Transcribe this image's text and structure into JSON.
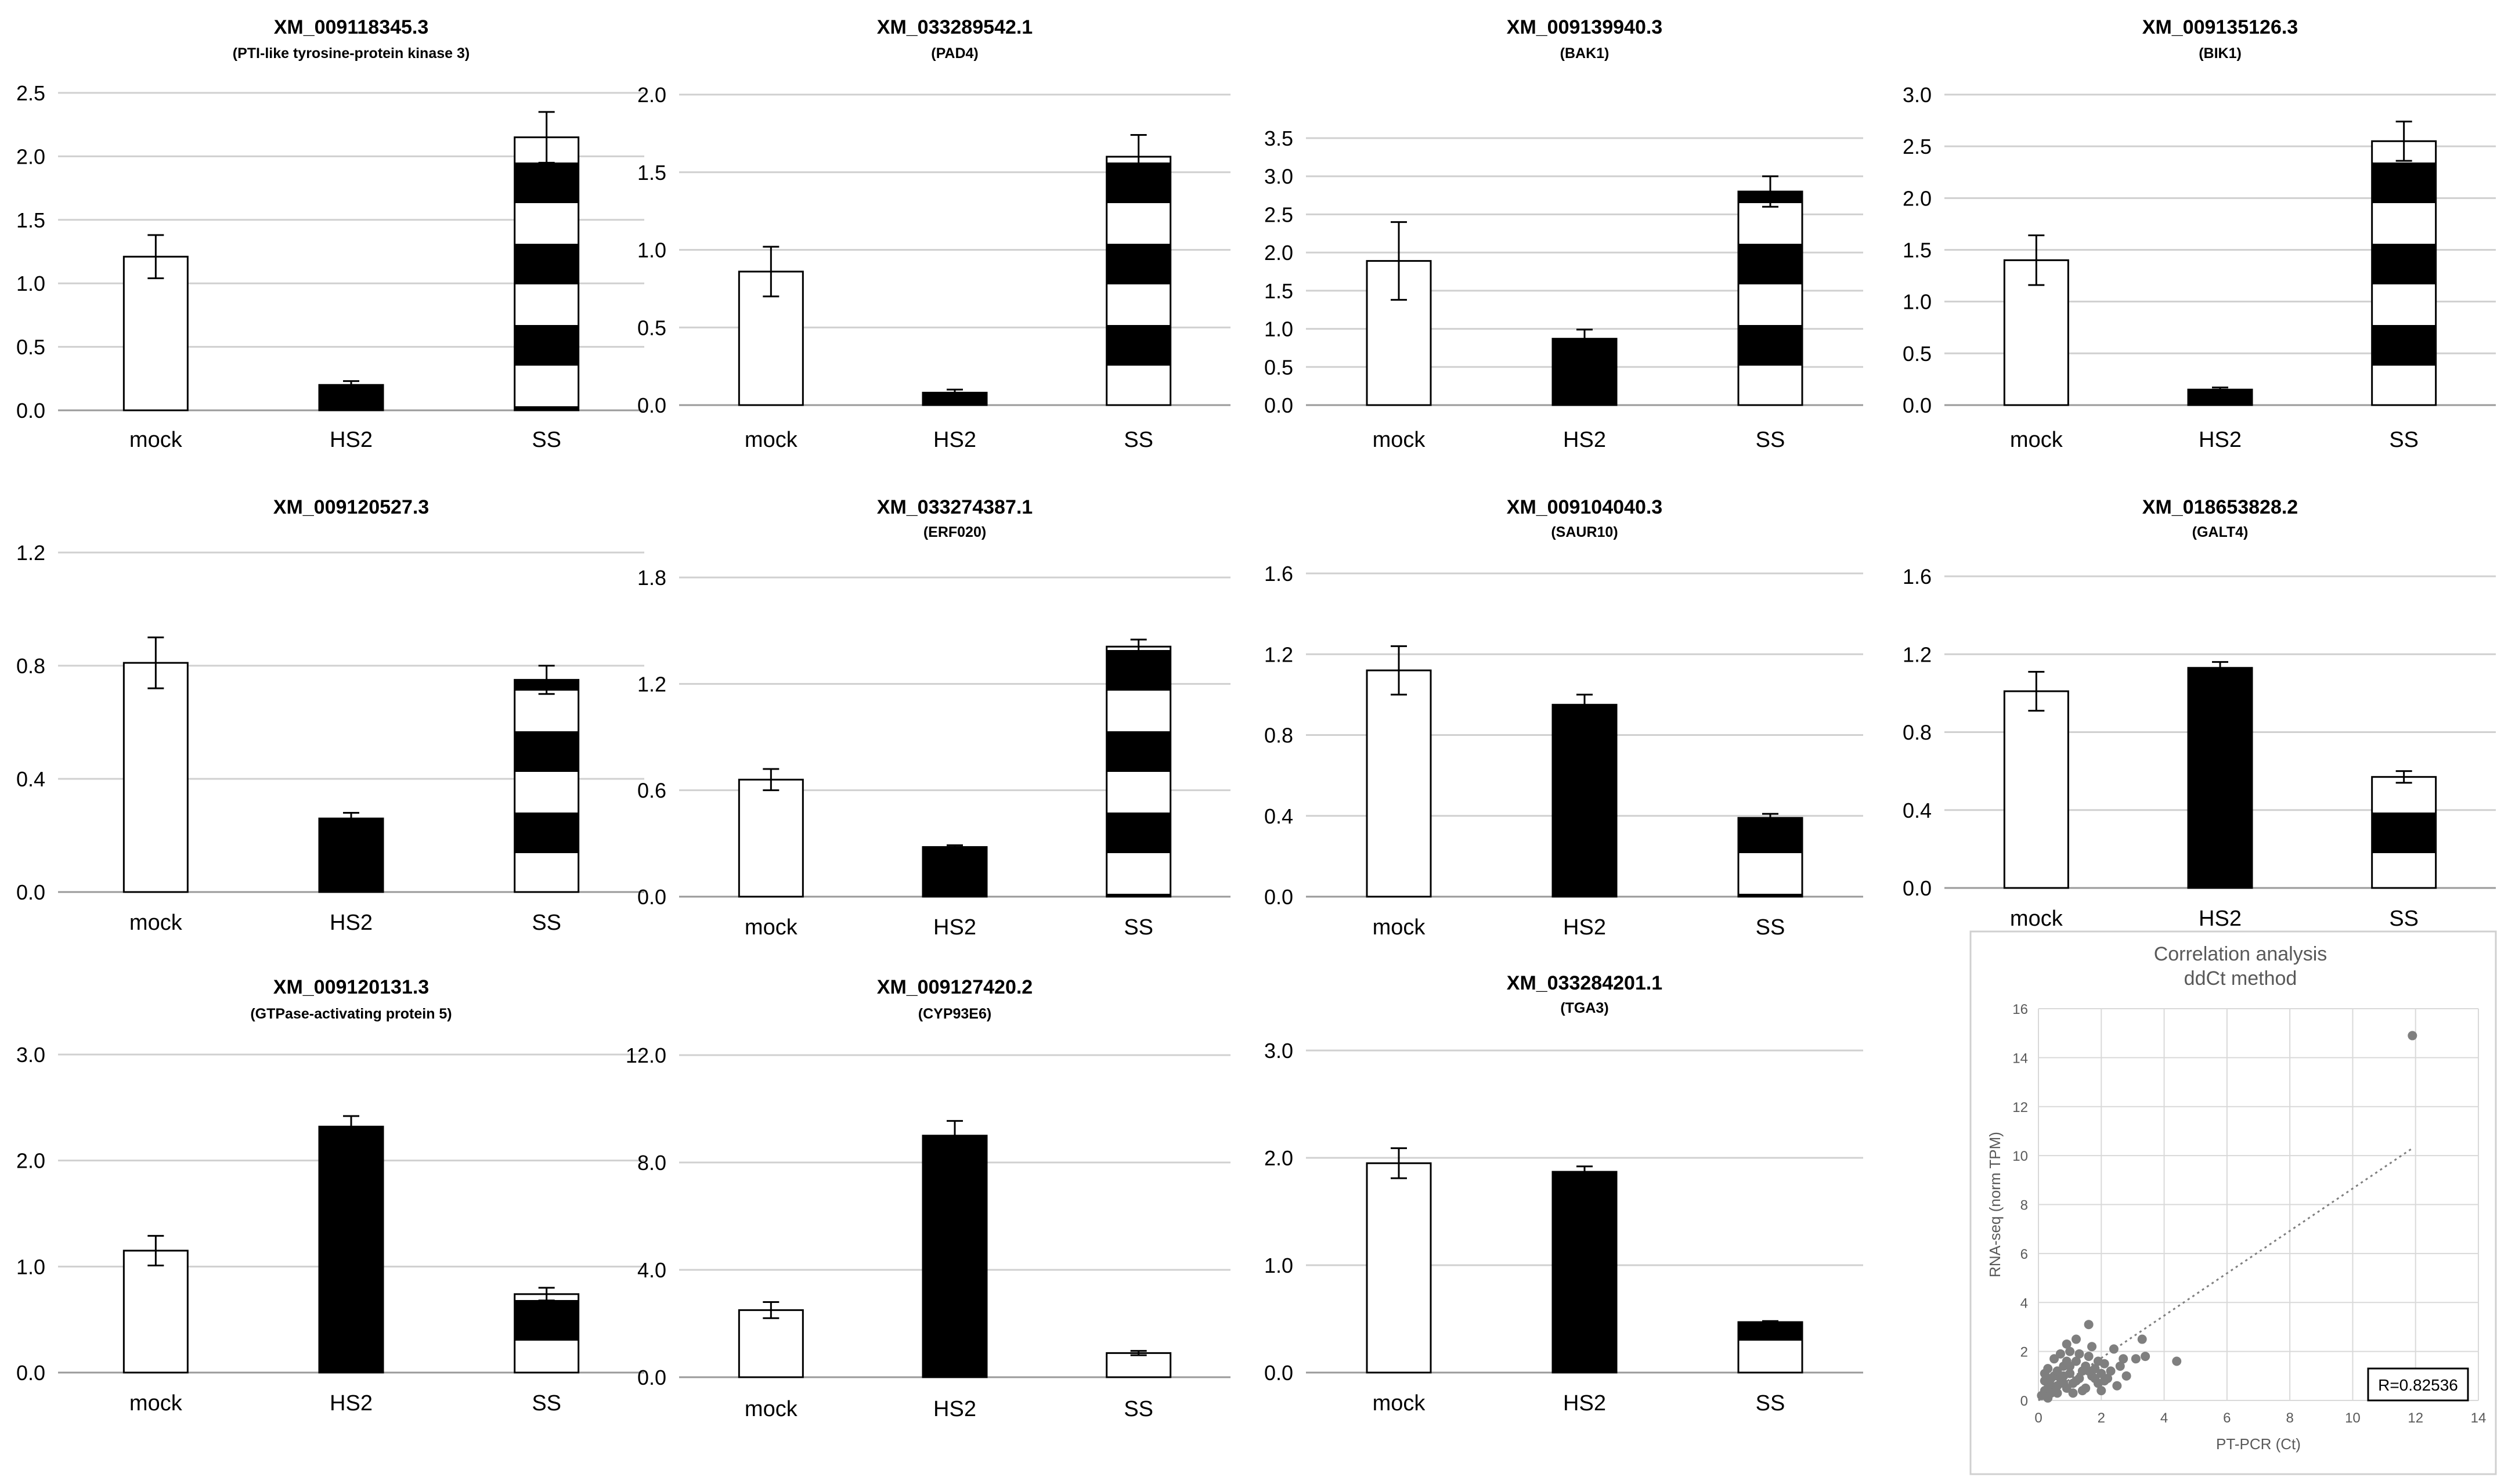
{
  "chart_data": [
    {
      "type": "bar",
      "title": "XM_009118345.3",
      "subtitle": "(PTI-like tyrosine-protein kinase 3)",
      "categories": [
        "mock",
        "HS2",
        "SS"
      ],
      "values": [
        1.21,
        0.2,
        2.15
      ],
      "errors": [
        0.17,
        0.03,
        0.2
      ],
      "fills": [
        "white",
        "black",
        "striped"
      ],
      "ylim": [
        0,
        2.5
      ],
      "yticks": [
        "0.0",
        "0.5",
        "1.0",
        "1.5",
        "2.0",
        "2.5"
      ],
      "grid": true
    },
    {
      "type": "bar",
      "title": "XM_033289542.1",
      "subtitle": "(PAD4)",
      "categories": [
        "mock",
        "HS2",
        "SS"
      ],
      "values": [
        0.86,
        0.08,
        1.6
      ],
      "errors": [
        0.16,
        0.02,
        0.14
      ],
      "fills": [
        "white",
        "black",
        "striped"
      ],
      "ylim": [
        0,
        2.0
      ],
      "yticks": [
        "0.0",
        "0.5",
        "1.0",
        "1.5",
        "2.0"
      ],
      "grid": true
    },
    {
      "type": "bar",
      "title": "XM_009139940.3",
      "subtitle": "(BAK1)",
      "categories": [
        "mock",
        "HS2",
        "SS"
      ],
      "values": [
        1.89,
        0.87,
        2.8
      ],
      "errors": [
        0.51,
        0.12,
        0.2
      ],
      "fills": [
        "white",
        "black",
        "striped"
      ],
      "ylim": [
        0,
        3.5
      ],
      "yticks": [
        "0.0",
        "0.5",
        "1.0",
        "1.5",
        "2.0",
        "2.5",
        "3.0",
        "3.5"
      ],
      "grid": true
    },
    {
      "type": "bar",
      "title": "XM_009135126.3",
      "subtitle": "(BIK1)",
      "categories": [
        "mock",
        "HS2",
        "SS"
      ],
      "values": [
        1.4,
        0.15,
        2.55
      ],
      "errors": [
        0.24,
        0.02,
        0.19
      ],
      "fills": [
        "white",
        "black",
        "striped"
      ],
      "ylim": [
        0,
        3.0
      ],
      "yticks": [
        "0.0",
        "0.5",
        "1.0",
        "1.5",
        "2.0",
        "2.5",
        "3.0"
      ],
      "grid": true
    },
    {
      "type": "bar",
      "title": "XM_009120527.3",
      "subtitle": "",
      "categories": [
        "mock",
        "HS2",
        "SS"
      ],
      "values": [
        0.81,
        0.26,
        0.75
      ],
      "errors": [
        0.09,
        0.02,
        0.05
      ],
      "fills": [
        "white",
        "black",
        "striped"
      ],
      "ylim": [
        0,
        1.2
      ],
      "yticks": [
        "0.0",
        "0.4",
        "0.8",
        "1.2"
      ],
      "grid": true
    },
    {
      "type": "bar",
      "title": "XM_033274387.1",
      "subtitle": "(ERF020)",
      "categories": [
        "mock",
        "HS2",
        "SS"
      ],
      "values": [
        0.66,
        0.28,
        1.41
      ],
      "errors": [
        0.06,
        0.01,
        0.04
      ],
      "fills": [
        "white",
        "black",
        "striped"
      ],
      "ylim": [
        0,
        1.8
      ],
      "yticks": [
        "0.0",
        "0.6",
        "1.2",
        "1.8"
      ],
      "grid": true
    },
    {
      "type": "bar",
      "title": "XM_009104040.3",
      "subtitle": "(SAUR10)",
      "categories": [
        "mock",
        "HS2",
        "SS"
      ],
      "values": [
        1.12,
        0.95,
        0.39
      ],
      "errors": [
        0.12,
        0.05,
        0.02
      ],
      "fills": [
        "white",
        "black",
        "striped"
      ],
      "ylim": [
        0,
        1.6
      ],
      "yticks": [
        "0.0",
        "0.4",
        "0.8",
        "1.2",
        "1.6"
      ],
      "grid": true
    },
    {
      "type": "bar",
      "title": "XM_018653828.2",
      "subtitle": "(GALT4)",
      "categories": [
        "mock",
        "HS2",
        "SS"
      ],
      "values": [
        1.01,
        1.13,
        0.57
      ],
      "errors": [
        0.1,
        0.03,
        0.03
      ],
      "fills": [
        "white",
        "black",
        "striped"
      ],
      "ylim": [
        0,
        1.6
      ],
      "yticks": [
        "0.0",
        "0.4",
        "0.8",
        "1.2",
        "1.6"
      ],
      "grid": true
    },
    {
      "type": "bar",
      "title": "XM_009120131.3",
      "subtitle": "(GTPase-activating protein 5)",
      "categories": [
        "mock",
        "HS2",
        "SS"
      ],
      "values": [
        1.15,
        2.32,
        0.74
      ],
      "errors": [
        0.14,
        0.1,
        0.06
      ],
      "fills": [
        "white",
        "black",
        "striped"
      ],
      "ylim": [
        0,
        3.0
      ],
      "yticks": [
        "0.0",
        "1.0",
        "2.0",
        "3.0"
      ],
      "grid": true
    },
    {
      "type": "bar",
      "title": "XM_009127420.2",
      "subtitle": "(CYP93E6)",
      "categories": [
        "mock",
        "HS2",
        "SS"
      ],
      "values": [
        2.5,
        9.0,
        0.9
      ],
      "errors": [
        0.3,
        0.55,
        0.08
      ],
      "fills": [
        "white",
        "black",
        "striped"
      ],
      "ylim": [
        0,
        12.0
      ],
      "yticks": [
        "0.0",
        "4.0",
        "8.0",
        "12.0"
      ],
      "grid": true
    },
    {
      "type": "bar",
      "title": "XM_033284201.1",
      "subtitle": "(TGA3)",
      "categories": [
        "mock",
        "HS2",
        "SS"
      ],
      "values": [
        1.95,
        1.87,
        0.47
      ],
      "errors": [
        0.14,
        0.05,
        0.01
      ],
      "fills": [
        "white",
        "black",
        "striped"
      ],
      "ylim": [
        0,
        3.0
      ],
      "yticks": [
        "0.0",
        "1.0",
        "2.0",
        "3.0"
      ],
      "grid": true
    },
    {
      "type": "scatter",
      "title": "Correlation analysis",
      "subtitle": "ddCt method",
      "xlabel": "PT-PCR (Ct)",
      "ylabel": "RNA-seq (norm TPM)",
      "xlim": [
        0,
        14
      ],
      "ylim": [
        0,
        16
      ],
      "xticks": [
        "0",
        "2",
        "4",
        "6",
        "8",
        "10",
        "12",
        "14"
      ],
      "yticks": [
        "0",
        "2",
        "4",
        "6",
        "8",
        "10",
        "12",
        "14",
        "16"
      ],
      "annotation": "R=0.82536",
      "grid": true,
      "trendline": {
        "x": [
          0,
          11.9
        ],
        "y": [
          0,
          10.3
        ]
      },
      "points": [
        [
          11.9,
          14.9
        ],
        [
          0.1,
          0.2
        ],
        [
          0.2,
          0.4
        ],
        [
          0.3,
          0.1
        ],
        [
          0.2,
          0.8
        ],
        [
          0.4,
          0.6
        ],
        [
          0.5,
          1.0
        ],
        [
          0.3,
          1.3
        ],
        [
          0.6,
          0.3
        ],
        [
          0.7,
          0.9
        ],
        [
          0.8,
          1.4
        ],
        [
          0.9,
          0.5
        ],
        [
          1.0,
          1.1
        ],
        [
          1.1,
          0.7
        ],
        [
          1.2,
          1.6
        ],
        [
          1.3,
          0.9
        ],
        [
          1.4,
          1.2
        ],
        [
          1.5,
          0.5
        ],
        [
          1.6,
          1.8
        ],
        [
          1.7,
          1.0
        ],
        [
          1.8,
          1.3
        ],
        [
          1.9,
          0.7
        ],
        [
          2.0,
          1.1
        ],
        [
          2.1,
          1.5
        ],
        [
          2.2,
          0.9
        ],
        [
          2.4,
          2.1
        ],
        [
          2.6,
          1.4
        ],
        [
          2.8,
          1.0
        ],
        [
          3.1,
          1.7
        ],
        [
          3.3,
          2.5
        ],
        [
          3.4,
          1.8
        ],
        [
          4.4,
          1.6
        ],
        [
          1.6,
          3.1
        ],
        [
          0.9,
          2.3
        ],
        [
          1.2,
          2.5
        ],
        [
          1.0,
          2.0
        ],
        [
          0.5,
          1.7
        ],
        [
          0.6,
          1.2
        ],
        [
          0.8,
          0.7
        ],
        [
          1.4,
          0.4
        ],
        [
          0.4,
          0.9
        ],
        [
          2.5,
          0.6
        ],
        [
          1.9,
          1.6
        ],
        [
          1.1,
          0.3
        ],
        [
          0.7,
          1.9
        ],
        [
          1.3,
          1.9
        ],
        [
          0.2,
          1.1
        ],
        [
          0.9,
          1.6
        ],
        [
          1.5,
          1.4
        ],
        [
          2.0,
          0.4
        ],
        [
          0.3,
          0.5
        ],
        [
          1.7,
          2.2
        ],
        [
          2.3,
          1.2
        ],
        [
          0.6,
          0.6
        ],
        [
          1.8,
          0.9
        ],
        [
          1.0,
          1.4
        ],
        [
          0.8,
          1.0
        ],
        [
          1.2,
          0.8
        ],
        [
          1.6,
          1.2
        ],
        [
          0.4,
          0.3
        ],
        [
          2.1,
          0.8
        ],
        [
          2.7,
          1.7
        ]
      ]
    }
  ]
}
